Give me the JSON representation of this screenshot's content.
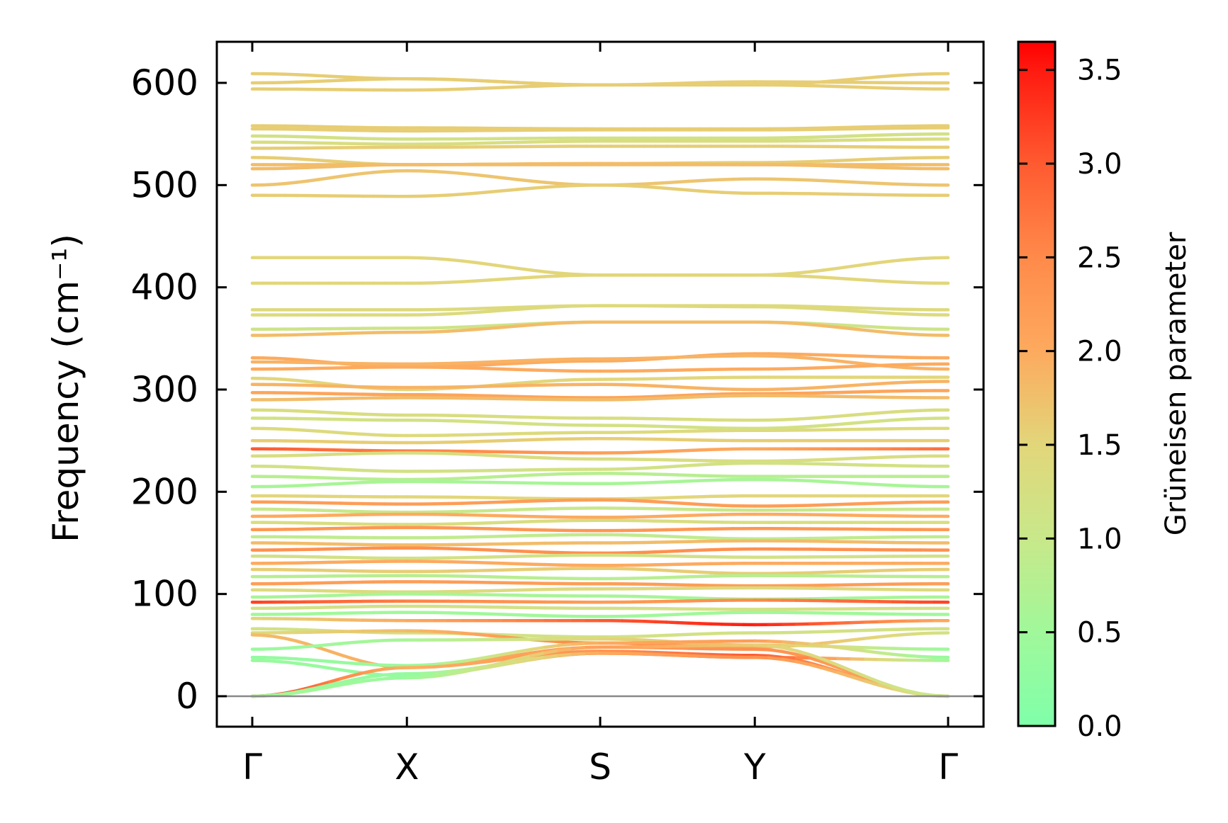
{
  "chart_data": {
    "type": "line",
    "title": "",
    "xlabel": "",
    "ylabel": "Frequency (cm⁻¹)",
    "ylim": [
      -30,
      640
    ],
    "yticks": [
      "0",
      "100",
      "200",
      "300",
      "400",
      "500",
      "600"
    ],
    "ytick_values": [
      0,
      100,
      200,
      300,
      400,
      500,
      600
    ],
    "kpoints": [
      "Γ",
      "X",
      "S",
      "Y",
      "Γ"
    ],
    "kpositions": [
      0,
      0.8,
      1.8,
      2.6,
      3.6
    ],
    "colorbar": {
      "label": "Grüneisen parameter",
      "range": [
        0,
        3.65
      ],
      "ticks": [
        "0.0",
        "0.5",
        "1.0",
        "1.5",
        "2.0",
        "2.5",
        "3.0",
        "3.5"
      ],
      "tick_values": [
        0,
        0.5,
        1.0,
        1.5,
        2.0,
        2.5,
        3.0,
        3.5
      ],
      "colormap": [
        {
          "v": 0.0,
          "c": "#80ffaa"
        },
        {
          "v": 0.5,
          "c": "#a0f89a"
        },
        {
          "v": 1.0,
          "c": "#c8e88a"
        },
        {
          "v": 1.5,
          "c": "#e2d67a"
        },
        {
          "v": 2.0,
          "c": "#fdaa5e"
        },
        {
          "v": 2.5,
          "c": "#ff8a4a"
        },
        {
          "v": 3.0,
          "c": "#ff5a30"
        },
        {
          "v": 3.5,
          "c": "#ff1a10"
        },
        {
          "v": 3.65,
          "c": "#ff0000"
        }
      ]
    },
    "bands": [
      {
        "f": [
          609,
          604,
          598,
          598,
          609
        ],
        "g": 1.6
      },
      {
        "f": [
          600,
          604,
          598,
          601,
          600
        ],
        "g": 1.6
      },
      {
        "f": [
          594,
          593,
          598,
          598,
          594
        ],
        "g": 1.6
      },
      {
        "f": [
          558,
          556,
          555,
          555,
          558
        ],
        "g": 1.6
      },
      {
        "f": [
          555,
          553,
          554,
          554,
          556
        ],
        "g": 1.6
      },
      {
        "f": [
          548,
          545,
          546,
          546,
          550
        ],
        "g": 1.2
      },
      {
        "f": [
          542,
          540,
          543,
          543,
          545
        ],
        "g": 1.3
      },
      {
        "f": [
          536,
          537,
          538,
          538,
          537
        ],
        "g": 1.6
      },
      {
        "f": [
          527,
          520,
          521,
          522,
          527
        ],
        "g": 1.6
      },
      {
        "f": [
          520,
          520,
          520,
          520,
          520
        ],
        "g": 1.8
      },
      {
        "f": [
          516,
          520,
          521,
          520,
          516
        ],
        "g": 1.8
      },
      {
        "f": [
          500,
          514,
          500,
          506,
          500
        ],
        "g": 1.7
      },
      {
        "f": [
          490,
          489,
          500,
          492,
          490
        ],
        "g": 1.6
      },
      {
        "f": [
          429,
          429,
          412,
          412,
          429
        ],
        "g": 1.5
      },
      {
        "f": [
          404,
          404,
          412,
          412,
          404
        ],
        "g": 1.5
      },
      {
        "f": [
          378,
          378,
          382,
          382,
          378
        ],
        "g": 1.4
      },
      {
        "f": [
          373,
          373,
          382,
          381,
          373
        ],
        "g": 1.4
      },
      {
        "f": [
          359,
          360,
          366,
          366,
          359
        ],
        "g": 1.1
      },
      {
        "f": [
          353,
          356,
          366,
          366,
          353
        ],
        "g": 1.8
      },
      {
        "f": [
          331,
          322,
          328,
          335,
          331
        ],
        "g": 2.0
      },
      {
        "f": [
          327,
          325,
          330,
          333,
          320
        ],
        "g": 1.9
      },
      {
        "f": [
          320,
          322,
          318,
          320,
          325
        ],
        "g": 2.0
      },
      {
        "f": [
          311,
          300,
          310,
          312,
          312
        ],
        "g": 1.5
      },
      {
        "f": [
          305,
          302,
          305,
          300,
          308
        ],
        "g": 1.9
      },
      {
        "f": [
          297,
          295,
          292,
          296,
          299
        ],
        "g": 2.1
      },
      {
        "f": [
          290,
          292,
          290,
          294,
          292
        ],
        "g": 1.8
      },
      {
        "f": [
          280,
          275,
          272,
          270,
          280
        ],
        "g": 1.3
      },
      {
        "f": [
          272,
          270,
          265,
          262,
          272
        ],
        "g": 1.2
      },
      {
        "f": [
          262,
          255,
          258,
          260,
          262
        ],
        "g": 1.4
      },
      {
        "f": [
          250,
          248,
          252,
          250,
          250
        ],
        "g": 1.6
      },
      {
        "f": [
          242,
          240,
          238,
          242,
          242
        ],
        "g": [
          3.0,
          2.6,
          2.2,
          2.0,
          2.8
        ]
      },
      {
        "f": [
          235,
          238,
          232,
          230,
          235
        ],
        "g": 1.3
      },
      {
        "f": [
          225,
          220,
          222,
          228,
          225
        ],
        "g": 1.2
      },
      {
        "f": [
          215,
          212,
          218,
          215,
          215
        ],
        "g": 0.8
      },
      {
        "f": [
          205,
          210,
          208,
          212,
          205
        ],
        "g": 0.6
      },
      {
        "f": [
          196,
          195,
          193,
          196,
          196
        ],
        "g": 1.5
      },
      {
        "f": [
          190,
          188,
          192,
          186,
          190
        ],
        "g": 2.2
      },
      {
        "f": [
          183,
          180,
          184,
          182,
          183
        ],
        "g": 1.0
      },
      {
        "f": [
          176,
          178,
          175,
          178,
          176
        ],
        "g": 2.0
      },
      {
        "f": [
          170,
          168,
          172,
          170,
          170
        ],
        "g": 1.3
      },
      {
        "f": [
          163,
          165,
          162,
          164,
          163
        ],
        "g": 2.3
      },
      {
        "f": [
          156,
          155,
          158,
          154,
          156
        ],
        "g": 0.9
      },
      {
        "f": [
          150,
          148,
          150,
          152,
          150
        ],
        "g": 1.8
      },
      {
        "f": [
          143,
          145,
          140,
          144,
          143
        ],
        "g": 2.4
      },
      {
        "f": [
          137,
          135,
          138,
          136,
          137
        ],
        "g": 1.2
      },
      {
        "f": [
          130,
          132,
          128,
          130,
          130
        ],
        "g": 2.0
      },
      {
        "f": [
          124,
          122,
          125,
          120,
          124
        ],
        "g": 1.6
      },
      {
        "f": [
          117,
          118,
          115,
          118,
          117
        ],
        "g": 0.8
      },
      {
        "f": [
          110,
          112,
          110,
          108,
          110
        ],
        "g": 2.2
      },
      {
        "f": [
          104,
          102,
          105,
          106,
          104
        ],
        "g": 1.4
      },
      {
        "f": [
          97,
          100,
          98,
          95,
          97
        ],
        "g": 0.6
      },
      {
        "f": [
          92,
          93,
          92,
          94,
          92
        ],
        "g": [
          3.2,
          2.6,
          2.2,
          2.5,
          3.2
        ]
      },
      {
        "f": [
          86,
          88,
          86,
          85,
          86
        ],
        "g": 1.2
      },
      {
        "f": [
          80,
          82,
          78,
          82,
          80
        ],
        "g": 0.5
      },
      {
        "f": [
          76,
          74,
          74,
          70,
          74
        ],
        "g": [
          1.5,
          2.0,
          3.0,
          3.5,
          2.0
        ]
      },
      {
        "f": [
          66,
          62,
          58,
          62,
          66
        ],
        "g": 1.2
      },
      {
        "f": [
          62,
          64,
          52,
          48,
          62
        ],
        "g": [
          1.4,
          1.8,
          2.6,
          2.0,
          1.2
        ]
      },
      {
        "f": [
          60,
          28,
          48,
          46,
          0
        ],
        "g": [
          1.8,
          2.0,
          2.2,
          2.4,
          2.0
        ]
      },
      {
        "f": [
          46,
          55,
          56,
          50,
          46
        ],
        "g": [
          0.4,
          0.6,
          1.5,
          1.8,
          0.4
        ]
      },
      {
        "f": [
          38,
          30,
          52,
          54,
          38
        ],
        "g": [
          0.3,
          0.4,
          2.0,
          2.2,
          0.3
        ]
      },
      {
        "f": [
          35,
          20,
          42,
          38,
          35
        ],
        "g": [
          0.4,
          0.3,
          2.4,
          3.2,
          0.5
        ]
      },
      {
        "f": [
          0,
          28,
          44,
          40,
          0
        ],
        "g": [
          3.4,
          1.9,
          2.4,
          3.0,
          1.5
        ]
      },
      {
        "f": [
          0,
          22,
          42,
          38,
          0
        ],
        "g": [
          0.5,
          0.3,
          2.0,
          2.4,
          1.2
        ]
      },
      {
        "f": [
          0,
          18,
          48,
          50,
          0
        ],
        "g": [
          0.6,
          0.4,
          2.2,
          1.6,
          1.0
        ]
      }
    ]
  }
}
